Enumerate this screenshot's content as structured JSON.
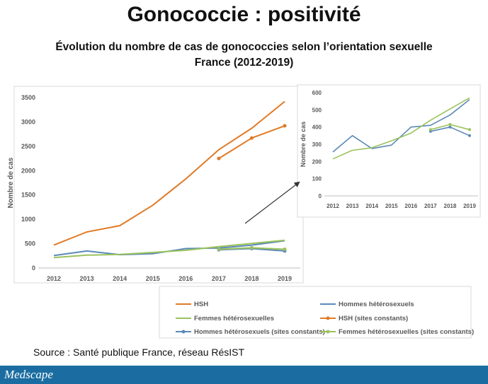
{
  "header": {
    "title": "Gonococcie : positivité",
    "subtitle_line1": "Évolution du nombre de cas de gonococcies selon l’orientation sexuelle",
    "subtitle_line2": "France (2012-2019)"
  },
  "source": "Source : Santé publique France, réseau RésIST",
  "footer": {
    "brand": "Medscape",
    "color": "#1b6da1"
  },
  "chart_data": [
    {
      "type": "line",
      "ylabel": "Nombre de cas",
      "xlabel": "",
      "x": [
        "2012",
        "2013",
        "2014",
        "2015",
        "2016",
        "2017",
        "2018",
        "2019"
      ],
      "ylim": [
        0,
        3500
      ],
      "yticks": [
        0,
        500,
        1000,
        1500,
        2000,
        2500,
        3000,
        3500
      ],
      "grid": false,
      "legend": "bottom",
      "series": [
        {
          "name": "HSH",
          "color": "#e07a26",
          "markers": false,
          "values": [
            470,
            740,
            870,
            1290,
            1830,
            2430,
            2870,
            3420
          ]
        },
        {
          "name": "Hommes hétérosexuels",
          "color": "#5b89b8",
          "markers": false,
          "values": [
            255,
            350,
            275,
            295,
            400,
            410,
            470,
            560
          ]
        },
        {
          "name": "Femmes hétérosexuelles",
          "color": "#9bc25c",
          "markers": false,
          "values": [
            215,
            265,
            280,
            320,
            365,
            440,
            505,
            570
          ]
        },
        {
          "name": "HSH (sites constants)",
          "color": "#e07a26",
          "markers": true,
          "values": [
            null,
            null,
            null,
            null,
            null,
            2250,
            2670,
            2920
          ]
        },
        {
          "name": "Hommes hétérosexuels (sites constants)",
          "color": "#5b89b8",
          "markers": true,
          "values": [
            null,
            null,
            null,
            null,
            null,
            375,
            400,
            350
          ]
        },
        {
          "name": "Femmes hétérosexuelles (sites constants)",
          "color": "#9bc25c",
          "markers": true,
          "values": [
            null,
            null,
            null,
            null,
            null,
            385,
            415,
            385
          ]
        }
      ]
    },
    {
      "type": "line",
      "ylabel": "Nombre de cas",
      "xlabel": "",
      "x": [
        "2012",
        "2013",
        "2014",
        "2015",
        "2016",
        "2017",
        "2018",
        "2019"
      ],
      "ylim": [
        0,
        600
      ],
      "yticks": [
        0,
        100,
        200,
        300,
        400,
        500,
        600
      ],
      "grid": false,
      "legend": "none",
      "series": [
        {
          "name": "Hommes hétérosexuels",
          "color": "#5b89b8",
          "markers": false,
          "values": [
            255,
            350,
            275,
            295,
            400,
            410,
            470,
            560
          ]
        },
        {
          "name": "Femmes hétérosexuelles",
          "color": "#9bc25c",
          "markers": false,
          "values": [
            215,
            265,
            280,
            320,
            365,
            440,
            505,
            570
          ]
        },
        {
          "name": "Hommes hétérosexuels (sites constants)",
          "color": "#5b89b8",
          "markers": true,
          "values": [
            null,
            null,
            null,
            null,
            null,
            375,
            400,
            350
          ]
        },
        {
          "name": "Femmes hétérosexuelles (sites constants)",
          "color": "#9bc25c",
          "markers": true,
          "values": [
            null,
            null,
            null,
            null,
            null,
            385,
            415,
            385
          ]
        }
      ]
    }
  ]
}
